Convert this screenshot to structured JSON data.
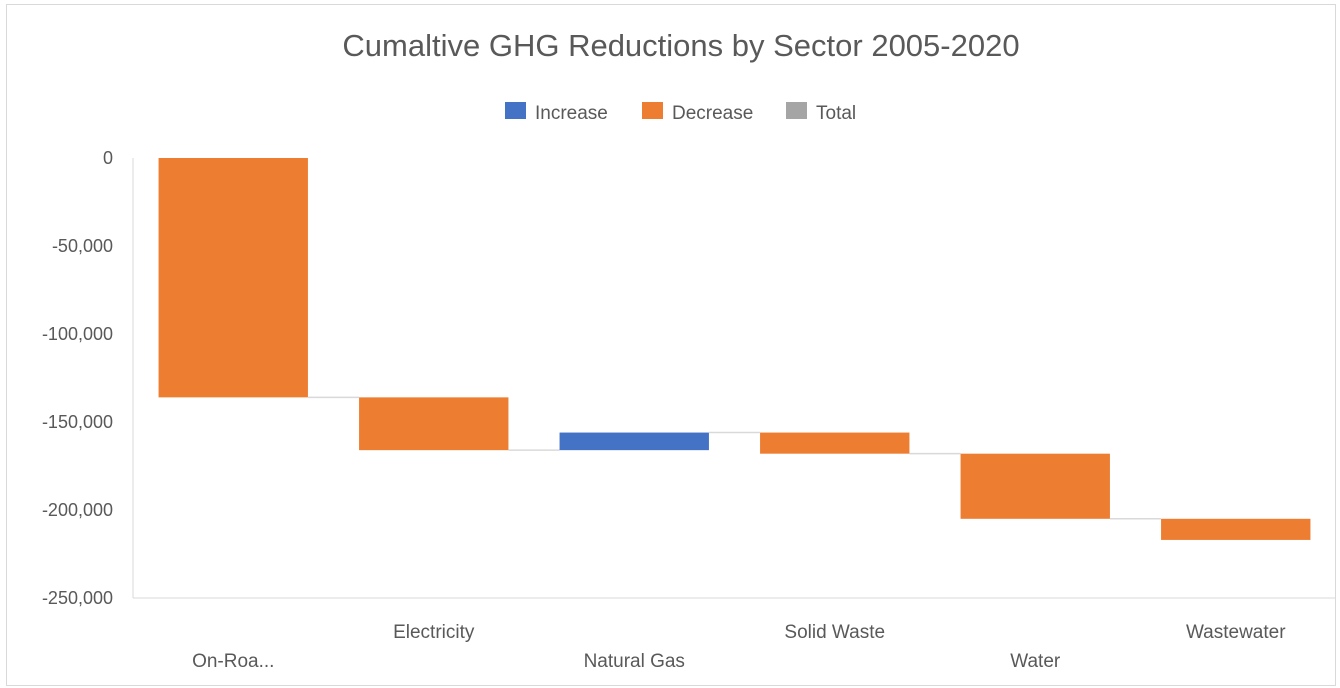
{
  "chart_data": {
    "type": "waterfall",
    "title": "Cumaltive GHG Reductions by Sector 2005-2020",
    "categories": [
      "On-Roa...",
      "Electricity",
      "Natural Gas",
      "Solid Waste",
      "Water",
      "Wastewater"
    ],
    "bars": [
      {
        "category": "On-Roa...",
        "start": 0,
        "end": -136000,
        "kind": "Decrease"
      },
      {
        "category": "Electricity",
        "start": -136000,
        "end": -166000,
        "kind": "Decrease"
      },
      {
        "category": "Natural Gas",
        "start": -166000,
        "end": -156000,
        "kind": "Increase"
      },
      {
        "category": "Solid Waste",
        "start": -156000,
        "end": -168000,
        "kind": "Decrease"
      },
      {
        "category": "Water",
        "start": -168000,
        "end": -205000,
        "kind": "Decrease"
      },
      {
        "category": "Wastewater",
        "start": -205000,
        "end": -217000,
        "kind": "Decrease"
      }
    ],
    "legend": [
      {
        "name": "Increase",
        "color": "#4472c4"
      },
      {
        "name": "Decrease",
        "color": "#ed7d31"
      },
      {
        "name": "Total",
        "color": "#a5a5a5"
      }
    ],
    "yticks": [
      "0",
      "-50,000",
      "-100,000",
      "-150,000",
      "-200,000",
      "-250,000"
    ],
    "ytick_values": [
      0,
      -50000,
      -100000,
      -150000,
      -200000,
      -250000
    ],
    "ylim": [
      -250000,
      0
    ],
    "legend_position": "top",
    "grid": false,
    "xlabel": "",
    "ylabel": ""
  }
}
